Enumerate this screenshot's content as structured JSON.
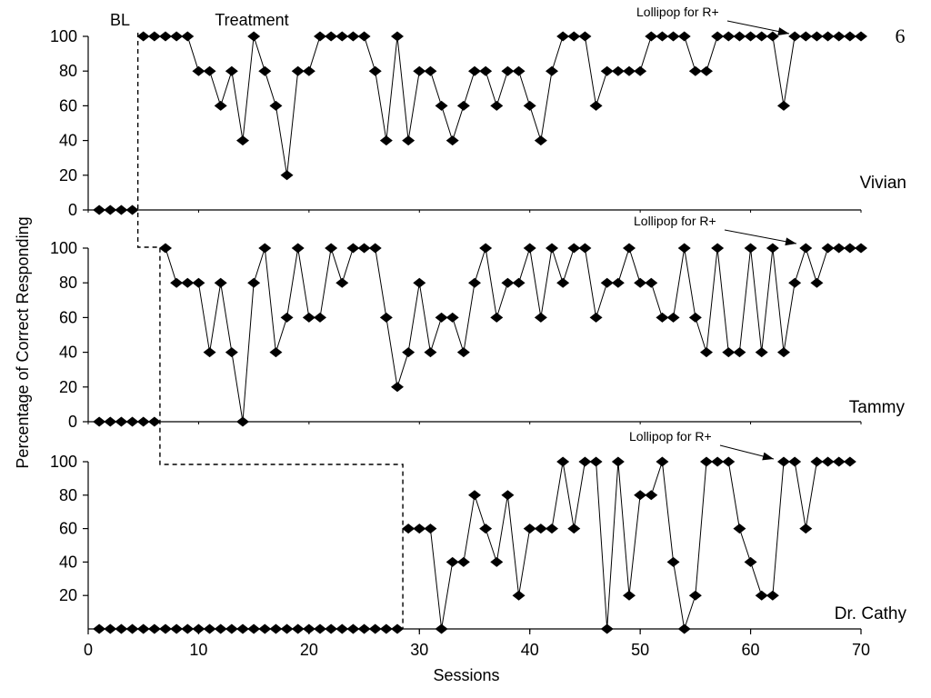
{
  "page_number": "6",
  "phase_labels": {
    "baseline": "BL",
    "treatment": "Treatment"
  },
  "chart_data": {
    "type": "line",
    "xlabel": "Sessions",
    "ylabel": "Percentage of Correct Responding",
    "xlim": [
      0,
      70
    ],
    "xticks": [
      "0",
      "10",
      "20",
      "30",
      "40",
      "50",
      "60",
      "70"
    ],
    "grid": false,
    "panels": [
      {
        "name": "Vivian",
        "ylim": [
          0,
          100
        ],
        "yticks": [
          "0",
          "20",
          "40",
          "60",
          "80",
          "100"
        ],
        "phase_change_after_session": 4.5,
        "annotation": {
          "text": "Lollipop for R+",
          "session": 64
        },
        "x": [
          1,
          2,
          3,
          4,
          5,
          6,
          7,
          8,
          9,
          10,
          11,
          12,
          13,
          14,
          15,
          16,
          17,
          18,
          19,
          20,
          21,
          22,
          23,
          24,
          25,
          26,
          27,
          28,
          29,
          30,
          31,
          32,
          33,
          34,
          35,
          36,
          37,
          38,
          39,
          40,
          41,
          42,
          43,
          44,
          45,
          46,
          47,
          48,
          49,
          50,
          51,
          52,
          53,
          54,
          55,
          56,
          57,
          58,
          59,
          60,
          61,
          62,
          63,
          64,
          65,
          66,
          67,
          68,
          69,
          70
        ],
        "y": [
          0,
          0,
          0,
          0,
          100,
          100,
          100,
          100,
          100,
          80,
          80,
          60,
          80,
          40,
          100,
          80,
          60,
          20,
          80,
          80,
          100,
          100,
          100,
          100,
          100,
          80,
          40,
          100,
          40,
          80,
          80,
          60,
          40,
          60,
          80,
          80,
          60,
          80,
          80,
          60,
          40,
          80,
          100,
          100,
          100,
          60,
          80,
          80,
          80,
          80,
          100,
          100,
          100,
          100,
          80,
          80,
          100,
          100,
          100,
          100,
          100,
          100,
          60,
          100,
          100,
          100,
          100,
          100,
          100,
          100
        ]
      },
      {
        "name": "Tammy",
        "ylim": [
          0,
          100
        ],
        "yticks": [
          "0",
          "20",
          "40",
          "60",
          "80",
          "100"
        ],
        "phase_change_after_session": 6.5,
        "annotation": {
          "text": "Lollipop for R+",
          "session": 65
        },
        "x": [
          1,
          2,
          3,
          4,
          5,
          6,
          7,
          8,
          9,
          10,
          11,
          12,
          13,
          14,
          15,
          16,
          17,
          18,
          19,
          20,
          21,
          22,
          23,
          24,
          25,
          26,
          27,
          28,
          29,
          30,
          31,
          32,
          33,
          34,
          35,
          36,
          37,
          38,
          39,
          40,
          41,
          42,
          43,
          44,
          45,
          46,
          47,
          48,
          49,
          50,
          51,
          52,
          53,
          54,
          55,
          56,
          57,
          58,
          59,
          60,
          61,
          62,
          63,
          64,
          65,
          66,
          67,
          68,
          69,
          70
        ],
        "y": [
          0,
          0,
          0,
          0,
          0,
          0,
          100,
          80,
          80,
          80,
          40,
          80,
          40,
          0,
          80,
          100,
          40,
          60,
          100,
          60,
          60,
          100,
          80,
          100,
          100,
          100,
          60,
          20,
          40,
          80,
          40,
          60,
          60,
          40,
          80,
          100,
          60,
          80,
          80,
          100,
          60,
          100,
          80,
          100,
          100,
          60,
          80,
          80,
          100,
          80,
          80,
          60,
          60,
          100,
          60,
          40,
          100,
          40,
          40,
          100,
          40,
          100,
          40,
          80,
          100,
          80,
          100,
          100,
          100,
          100
        ]
      },
      {
        "name": "Dr. Cathy",
        "ylim": [
          0,
          100
        ],
        "yticks": [
          "20",
          "40",
          "60",
          "80",
          "100"
        ],
        "phase_change_after_session": 28.5,
        "annotation": {
          "text": "Lollipop for R+",
          "session": 63
        },
        "x": [
          1,
          2,
          3,
          4,
          5,
          6,
          7,
          8,
          9,
          10,
          11,
          12,
          13,
          14,
          15,
          16,
          17,
          18,
          19,
          20,
          21,
          22,
          23,
          24,
          25,
          26,
          27,
          28,
          29,
          30,
          31,
          32,
          33,
          34,
          35,
          36,
          37,
          38,
          39,
          40,
          41,
          42,
          43,
          44,
          45,
          46,
          47,
          48,
          49,
          50,
          51,
          52,
          53,
          54,
          55,
          56,
          57,
          58,
          59,
          60,
          61,
          62,
          63,
          64,
          65,
          66,
          67,
          68,
          69
        ],
        "y": [
          0,
          0,
          0,
          0,
          0,
          0,
          0,
          0,
          0,
          0,
          0,
          0,
          0,
          0,
          0,
          0,
          0,
          0,
          0,
          0,
          0,
          0,
          0,
          0,
          0,
          0,
          0,
          0,
          60,
          60,
          60,
          0,
          40,
          40,
          80,
          60,
          40,
          80,
          20,
          60,
          60,
          60,
          100,
          60,
          100,
          100,
          0,
          100,
          20,
          80,
          80,
          100,
          40,
          0,
          20,
          100,
          100,
          100,
          60,
          40,
          20,
          20,
          100,
          100,
          60,
          100,
          100,
          100,
          100
        ]
      }
    ]
  }
}
